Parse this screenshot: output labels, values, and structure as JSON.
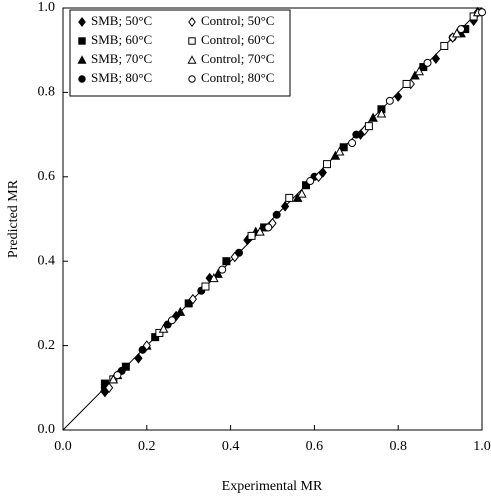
{
  "chart_data": {
    "type": "scatter",
    "xlabel": "Experimental MR",
    "ylabel": "Predicted MR",
    "xlim": [
      0,
      1
    ],
    "ylim": [
      0,
      1
    ],
    "xticks": [
      {
        "value": 0,
        "label": "0.0"
      },
      0.2,
      0.4,
      0.6,
      0.8,
      {
        "value": 1,
        "label": "1.0"
      }
    ],
    "yticks": [
      {
        "value": 0,
        "label": "0.0"
      },
      0.2,
      0.4,
      0.6,
      0.8,
      {
        "value": 1,
        "label": "1.0"
      }
    ],
    "legend": "upper left",
    "series": [
      {
        "name": "SMB; 50°C",
        "color": "#000000",
        "marker": "diamond",
        "filled": true,
        "x": [
          0.1,
          0.18,
          0.27,
          0.35,
          0.44,
          0.53,
          0.62,
          0.71,
          0.8,
          0.89,
          0.98
        ],
        "values": [
          0.09,
          0.17,
          0.27,
          0.36,
          0.45,
          0.53,
          0.61,
          0.7,
          0.79,
          0.88,
          0.97
        ]
      },
      {
        "name": "SMB; 60°C",
        "color": "#000000",
        "marker": "square",
        "filled": true,
        "x": [
          0.1,
          0.15,
          0.22,
          0.3,
          0.39,
          0.48,
          0.58,
          0.67,
          0.76,
          0.86,
          0.96
        ],
        "values": [
          0.11,
          0.15,
          0.22,
          0.3,
          0.4,
          0.48,
          0.58,
          0.67,
          0.76,
          0.86,
          0.95
        ]
      },
      {
        "name": "SMB; 70°C",
        "color": "#000000",
        "marker": "triangle",
        "filled": true,
        "x": [
          0.1,
          0.13,
          0.2,
          0.28,
          0.37,
          0.46,
          0.56,
          0.65,
          0.74,
          0.84,
          0.95
        ],
        "values": [
          0.1,
          0.13,
          0.2,
          0.28,
          0.37,
          0.47,
          0.55,
          0.65,
          0.74,
          0.84,
          0.94
        ]
      },
      {
        "name": "SMB; 80°C",
        "color": "#000000",
        "marker": "circle",
        "filled": true,
        "x": [
          0.1,
          0.14,
          0.19,
          0.25,
          0.33,
          0.42,
          0.51,
          0.6,
          0.7,
          0.82,
          0.93
        ],
        "values": [
          0.1,
          0.14,
          0.19,
          0.25,
          0.33,
          0.42,
          0.51,
          0.6,
          0.7,
          0.82,
          0.93
        ]
      },
      {
        "name": "Control; 50°C",
        "color": "#000000",
        "marker": "diamond",
        "filled": false,
        "x": [
          0.11,
          0.2,
          0.31,
          0.41,
          0.5,
          0.61,
          0.72,
          0.83,
          0.93,
          0.99
        ],
        "values": [
          0.1,
          0.2,
          0.31,
          0.41,
          0.49,
          0.6,
          0.71,
          0.82,
          0.93,
          0.99
        ]
      },
      {
        "name": "Control; 60°C",
        "color": "#000000",
        "marker": "square",
        "filled": false,
        "x": [
          0.12,
          0.23,
          0.34,
          0.45,
          0.54,
          0.63,
          0.73,
          0.82,
          0.91,
          0.98
        ],
        "values": [
          0.12,
          0.23,
          0.34,
          0.46,
          0.55,
          0.63,
          0.72,
          0.82,
          0.91,
          0.98
        ]
      },
      {
        "name": "Control; 70°C",
        "color": "#000000",
        "marker": "triangle",
        "filled": false,
        "x": [
          0.12,
          0.24,
          0.36,
          0.47,
          0.57,
          0.66,
          0.76,
          0.85,
          0.94,
          0.99
        ],
        "values": [
          0.12,
          0.24,
          0.36,
          0.47,
          0.56,
          0.66,
          0.75,
          0.85,
          0.94,
          0.99
        ]
      },
      {
        "name": "Control; 80°C",
        "color": "#000000",
        "marker": "circle",
        "filled": false,
        "x": [
          0.13,
          0.26,
          0.38,
          0.49,
          0.59,
          0.69,
          0.78,
          0.87,
          0.95,
          1.0
        ],
        "values": [
          0.13,
          0.26,
          0.38,
          0.48,
          0.59,
          0.68,
          0.78,
          0.87,
          0.95,
          0.99
        ]
      }
    ]
  }
}
